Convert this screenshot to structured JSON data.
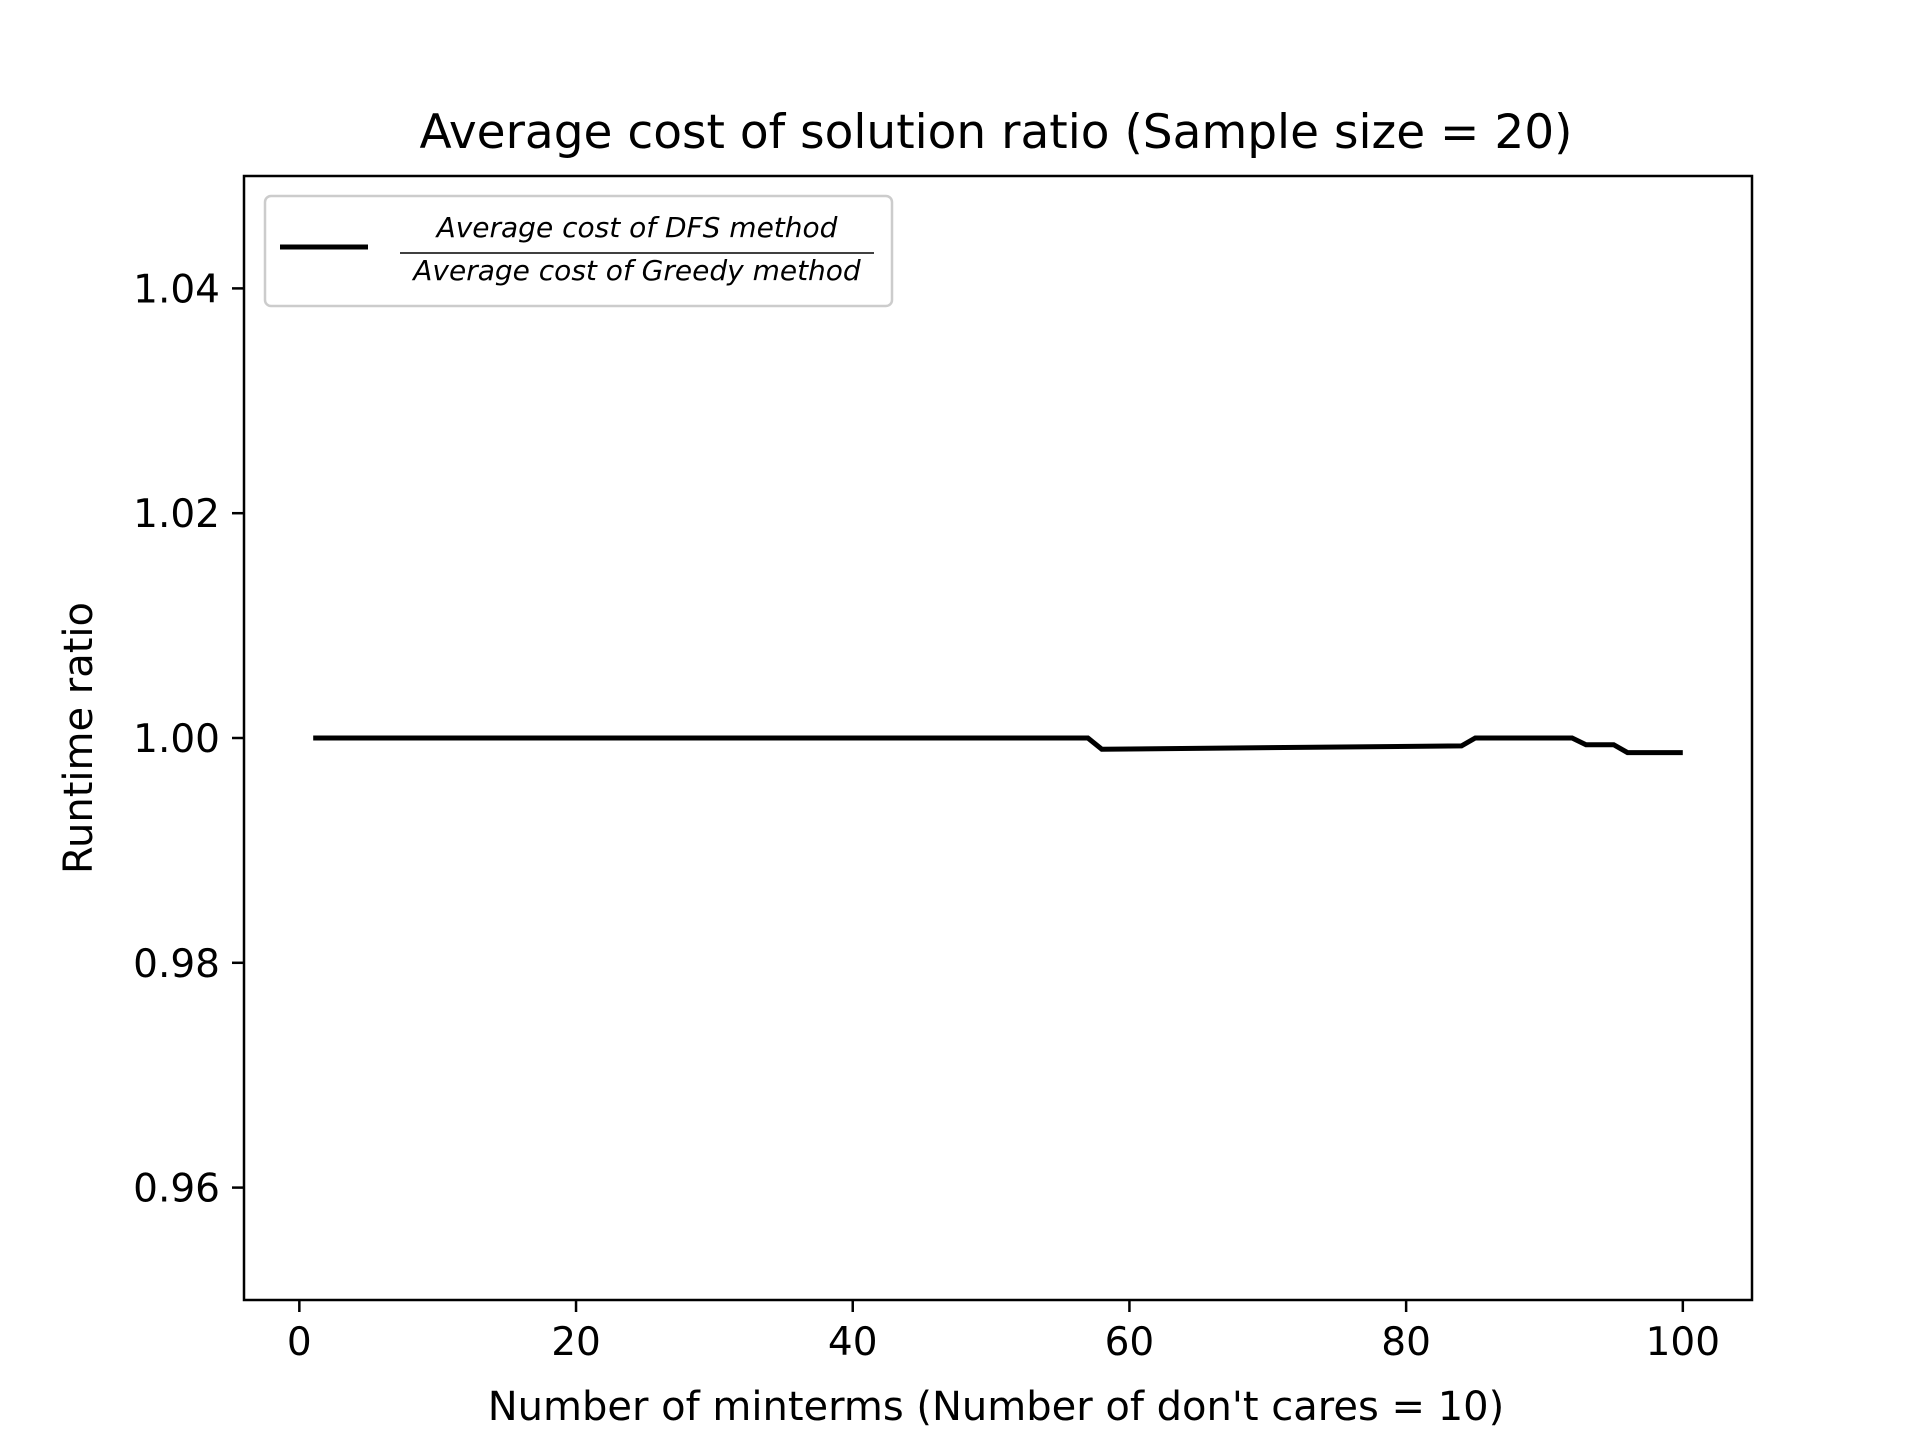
{
  "chart_data": {
    "type": "line",
    "title": "Average cost of solution ratio (Sample size = 20)",
    "xlabel": "Number of minterms (Number of don't cares = 10)",
    "ylabel": "Runtime ratio",
    "xlim": [
      -4,
      105
    ],
    "ylim": [
      0.95,
      1.05
    ],
    "xticks": [
      0,
      20,
      40,
      60,
      80,
      100
    ],
    "xtick_labels": [
      "0",
      "20",
      "40",
      "60",
      "80",
      "100"
    ],
    "yticks": [
      0.96,
      0.98,
      1.0,
      1.02,
      1.04
    ],
    "ytick_labels": [
      "0.96",
      "0.98",
      "1.00",
      "1.02",
      "1.04"
    ],
    "grid": false,
    "legend_position": "top-left",
    "series": [
      {
        "name_numerator": "Average cost of DFS method",
        "name_denominator": "Average cost of Greedy method",
        "color": "#000000",
        "x": [
          1,
          57,
          58,
          84,
          85,
          92,
          93,
          95,
          96,
          100
        ],
        "y": [
          1.0,
          1.0,
          0.999,
          0.9993,
          1.0,
          1.0,
          0.9994,
          0.9994,
          0.9987,
          0.9987
        ]
      }
    ]
  }
}
